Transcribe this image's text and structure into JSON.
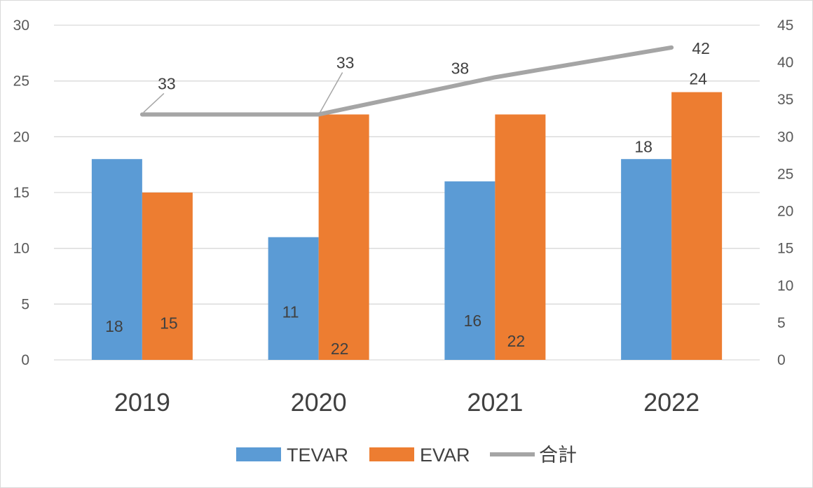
{
  "chart_data": {
    "type": "bar",
    "categories": [
      "2019",
      "2020",
      "2021",
      "2022"
    ],
    "series": [
      {
        "name": "TEVAR",
        "type": "bar",
        "axis": "left",
        "color": "#5b9bd5",
        "values": [
          18,
          11,
          16,
          18
        ]
      },
      {
        "name": "EVAR",
        "type": "bar",
        "axis": "left",
        "color": "#ed7d31",
        "values": [
          15,
          22,
          22,
          24
        ]
      },
      {
        "name": "合計",
        "type": "line",
        "axis": "right",
        "color": "#a5a5a5",
        "values": [
          33,
          33,
          38,
          42
        ]
      }
    ],
    "y_left": {
      "range": [
        0,
        30
      ],
      "ticks": [
        "0",
        "5",
        "10",
        "15",
        "20",
        "25",
        "30"
      ]
    },
    "y_right": {
      "range": [
        0,
        45
      ],
      "ticks": [
        "0",
        "5",
        "10",
        "15",
        "20",
        "25",
        "30",
        "35",
        "40",
        "45"
      ]
    },
    "grid": true,
    "legend_position": "bottom",
    "title": "",
    "xlabel": "",
    "ylabel": ""
  }
}
